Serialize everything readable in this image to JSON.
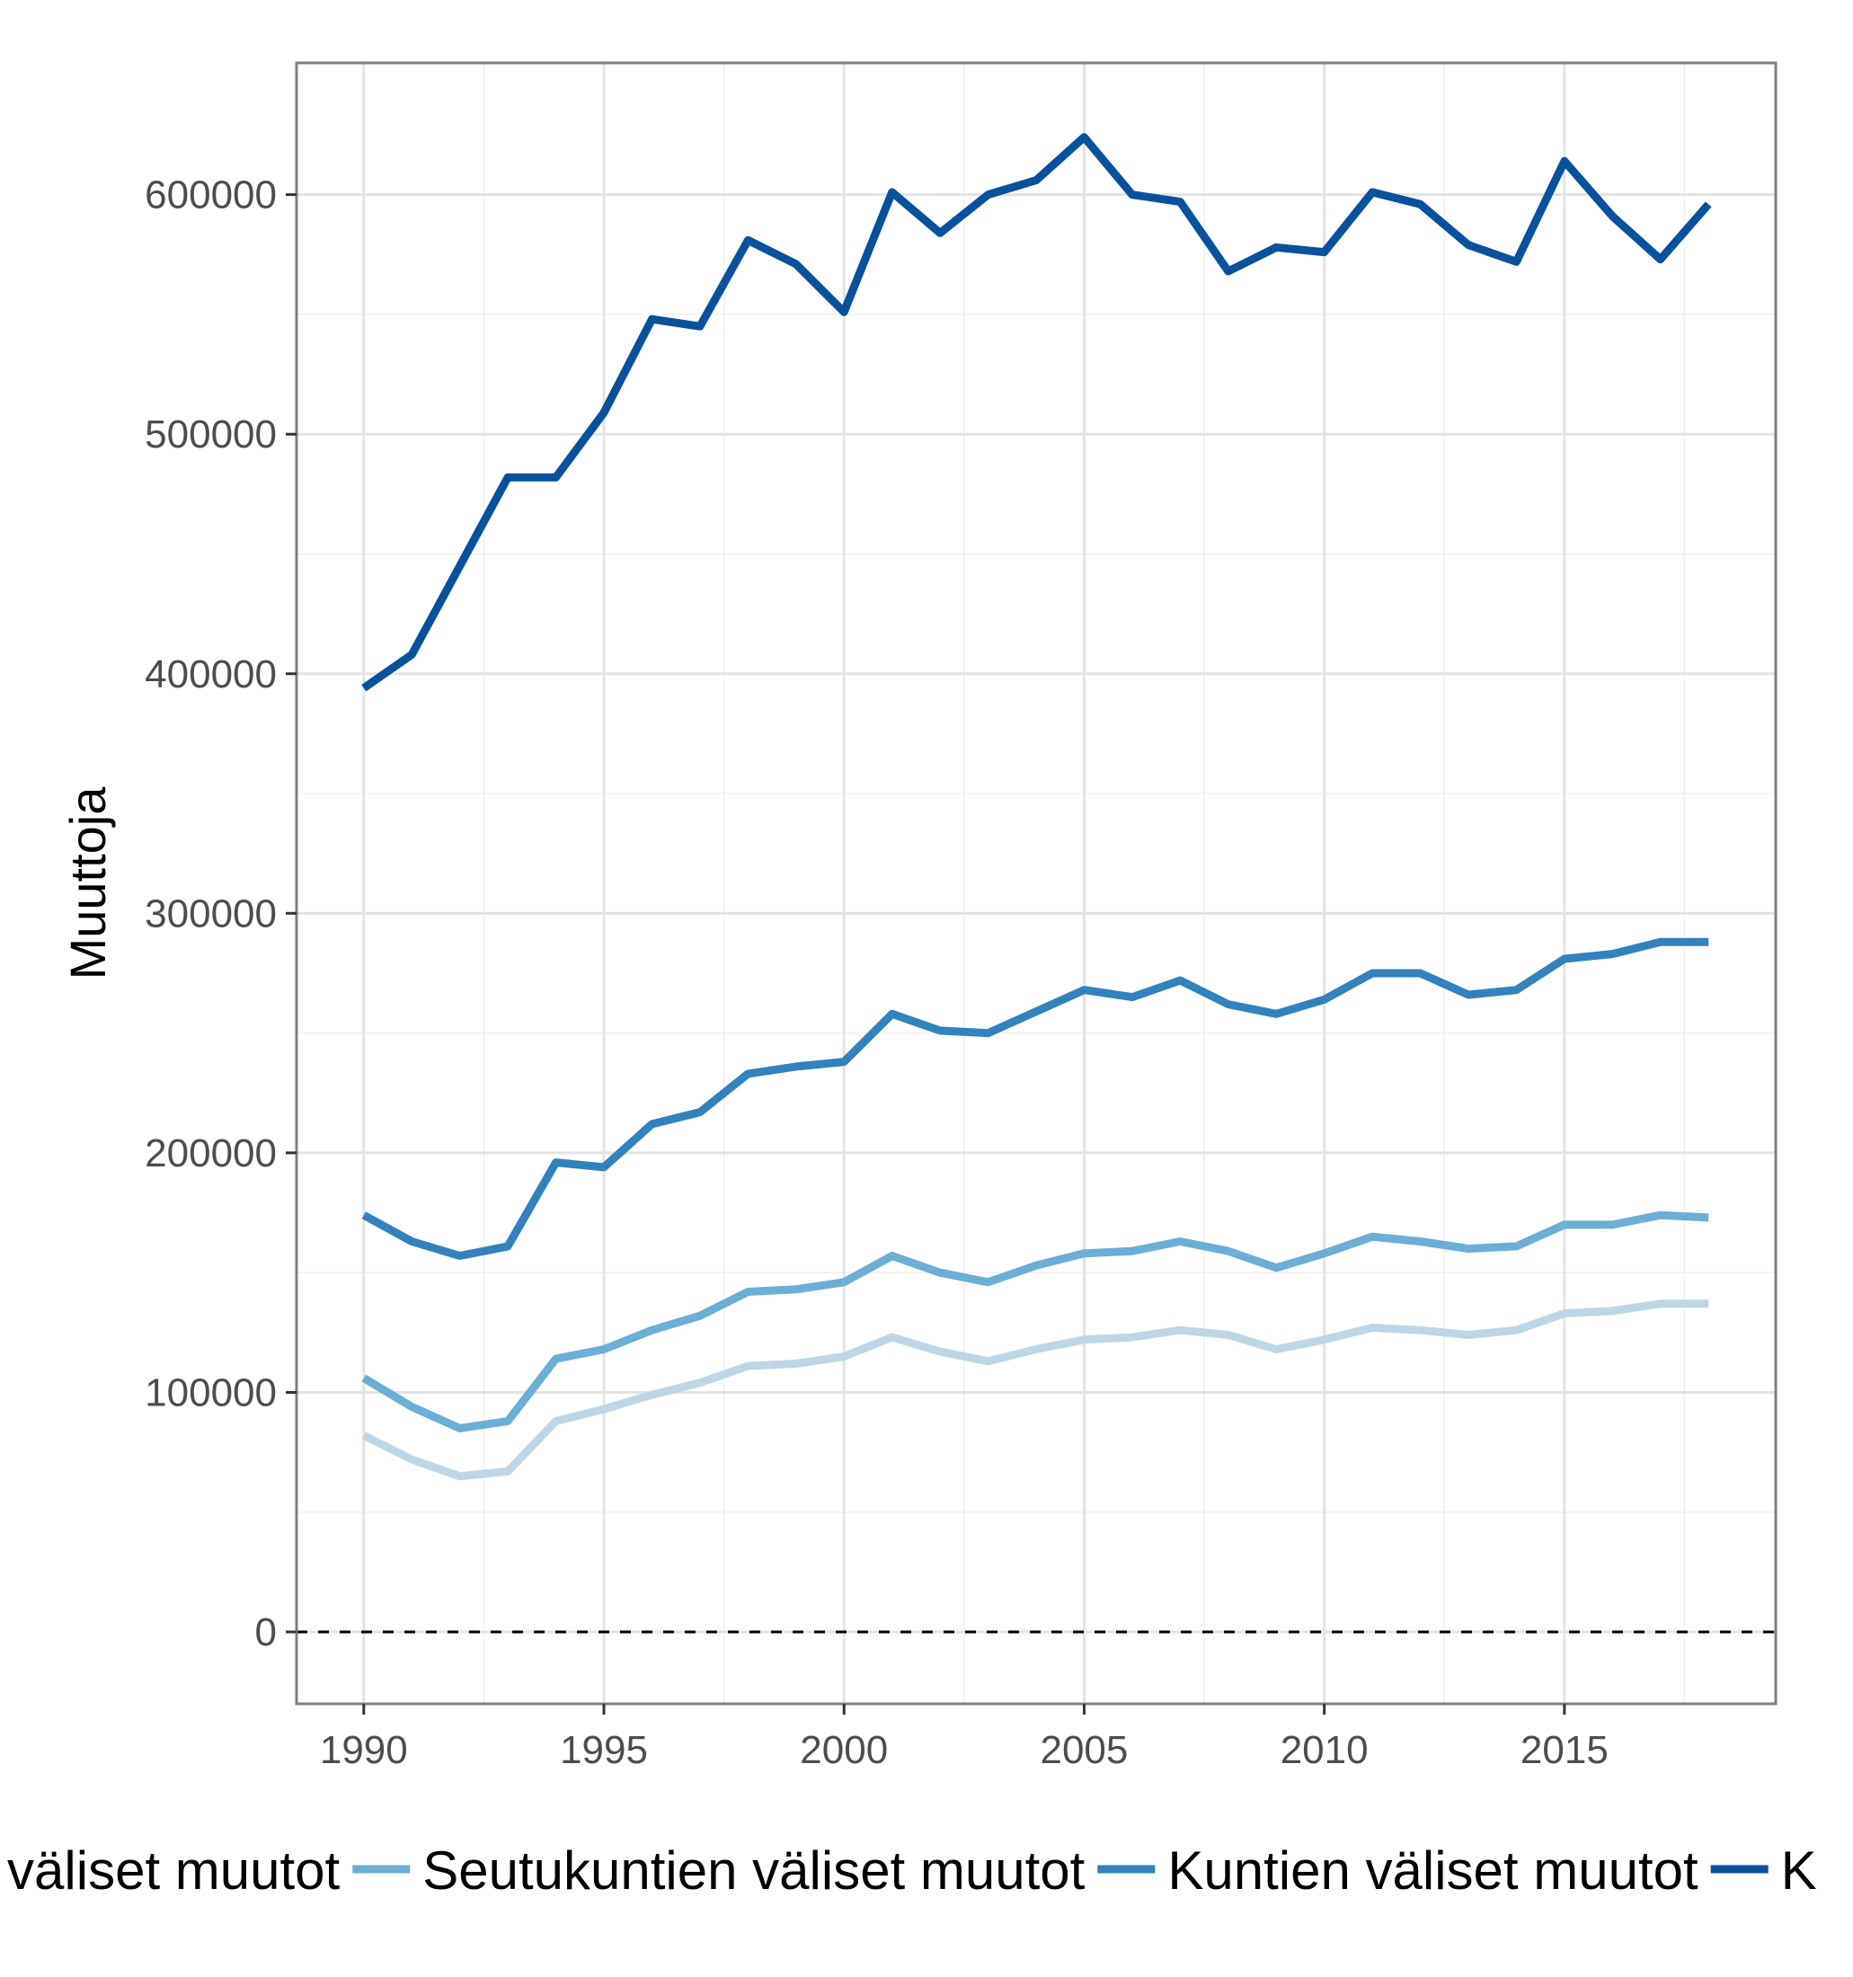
{
  "chart_data": {
    "type": "line",
    "ylabel": "Muuttoja",
    "xlabel": "",
    "title": "",
    "xlim": [
      1988.6,
      2019.4
    ],
    "ylim": [
      -30000,
      655000
    ],
    "x_ticks": [
      1990,
      1995,
      2000,
      2005,
      2010,
      2015
    ],
    "y_ticks": [
      0,
      100000,
      200000,
      300000,
      400000,
      500000,
      600000
    ],
    "x_tick_labels": [
      "1990",
      "1995",
      "2000",
      "2005",
      "2010",
      "2015"
    ],
    "y_tick_labels": [
      "0",
      "100000",
      "200000",
      "300000",
      "400000",
      "500000",
      "600000"
    ],
    "grid": true,
    "reference_line": {
      "y": 0,
      "style": "dashed"
    },
    "legend_position": "bottom",
    "x": [
      1990,
      1991,
      1992,
      1993,
      1994,
      1995,
      1996,
      1997,
      1998,
      1999,
      2000,
      2001,
      2002,
      2003,
      2004,
      2005,
      2006,
      2007,
      2008,
      2009,
      2010,
      2011,
      2012,
      2013,
      2014,
      2015,
      2016,
      2017,
      2018
    ],
    "series": [
      {
        "name": "",
        "legend_label": "n väliset muutot",
        "color": "#bdd7e7",
        "values": [
          82000,
          72000,
          65000,
          67000,
          88000,
          93000,
          99000,
          104000,
          111000,
          112000,
          115000,
          123000,
          117000,
          113000,
          118000,
          122000,
          123000,
          126000,
          124000,
          118000,
          122000,
          127000,
          126000,
          124000,
          126000,
          133000,
          134000,
          137000,
          137000
        ]
      },
      {
        "name": "Seutukuntien väliset muutot",
        "legend_label": "Seutukuntien väliset muutot",
        "color": "#6baed6",
        "values": [
          106000,
          94000,
          85000,
          88000,
          114000,
          118000,
          126000,
          132000,
          142000,
          143000,
          146000,
          157000,
          150000,
          146000,
          153000,
          158000,
          159000,
          163000,
          159000,
          152000,
          158000,
          165000,
          163000,
          160000,
          161000,
          170000,
          170000,
          174000,
          173000
        ]
      },
      {
        "name": "Kuntien väliset muutot",
        "legend_label": "Kuntien väliset muutot",
        "color": "#3182bd",
        "values": [
          174000,
          163000,
          157000,
          161000,
          196000,
          194000,
          212000,
          217000,
          233000,
          236000,
          238000,
          258000,
          251000,
          250000,
          259000,
          268000,
          265000,
          272000,
          262000,
          258000,
          264000,
          275000,
          275000,
          266000,
          268000,
          281000,
          283000,
          288000,
          288000
        ]
      },
      {
        "name": "",
        "legend_label": "K",
        "color": "#08519c",
        "values": [
          394000,
          408000,
          445000,
          482000,
          482000,
          509000,
          548000,
          545000,
          581000,
          571000,
          551000,
          601000,
          584000,
          600000,
          606000,
          624000,
          600000,
          597000,
          568000,
          578000,
          576000,
          601000,
          596000,
          579000,
          572000,
          614000,
          591000,
          573000,
          596000
        ]
      }
    ]
  }
}
